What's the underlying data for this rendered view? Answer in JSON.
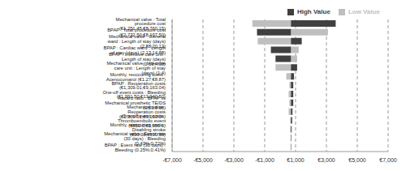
{
  "chart_data": {
    "type": "bar",
    "orientation": "horizontal",
    "categories": [
      "Mechanical valve : Total procedure cost (€1,251.45;€8,760.15)",
      "BPAP : Total procedure cost (€2,732.50;€8,197.50)",
      "Mechanical valve : General ward : Length of stay (days) (2.88;20.13)",
      "BPAP : Cardiac ward : Length of stay (days) (2.13;14.88)",
      "BPAP : Intensive care unit : Length of stay (days) (0.63;4.38)",
      "Mechanical valve : Intensive care unit : Length of stay (days) (1;4)",
      "Monthly, reoccuring costs : Acenocumarol (€1.27;€8.87)",
      "BPAP : Reoperation costs (€1,309.01;€9,163.04)",
      "One-off event costs : Bleeding (€1,991.50;€13,940.50)",
      "Hazard ratio : BPAP vs Mechanical prosthetic TE/DS (0.59;0.98)",
      "Mechanical valve : Reoperation costs (€1,309.01;€9,163.04)",
      "One-off event costs : Thromboembolic event (€850.0;€5,950.0)",
      "Monthly, reoccuring costs : Disabling stroke (€90.08;€630.56)",
      "Mechanical valve : Event rate (30 days) : Bleeding (0.43%;0.72%)",
      "BPAP : Event rate (30 days) : Bleeding (0.25%;0.41%)"
    ],
    "base": 700,
    "series": [
      {
        "name": "Low Value",
        "color": "#bfbfbf",
        "values": [
          -1800,
          3100,
          -1450,
          1200,
          1100,
          -300,
          400,
          600,
          550,
          600,
          550,
          650,
          650,
          680,
          670
        ]
      },
      {
        "name": "High Value",
        "color": "#404040",
        "values": [
          3600,
          -1500,
          1400,
          -600,
          -300,
          1100,
          900,
          850,
          850,
          850,
          800,
          780,
          750,
          730,
          720
        ]
      }
    ],
    "xlim": [
      -7000,
      7000
    ],
    "xticks": [
      {
        "value": -7000,
        "label": "-€7,000"
      },
      {
        "value": -5000,
        "label": "-€5,000"
      },
      {
        "value": -3000,
        "label": "-€3,000"
      },
      {
        "value": -1000,
        "label": "-€1,000"
      },
      {
        "value": 1000,
        "label": "€1,000"
      },
      {
        "value": 3000,
        "label": "€3,000"
      },
      {
        "value": 5000,
        "label": "€5,000"
      },
      {
        "value": 7000,
        "label": "€7,000"
      }
    ],
    "grid": true,
    "legend": "top right"
  }
}
